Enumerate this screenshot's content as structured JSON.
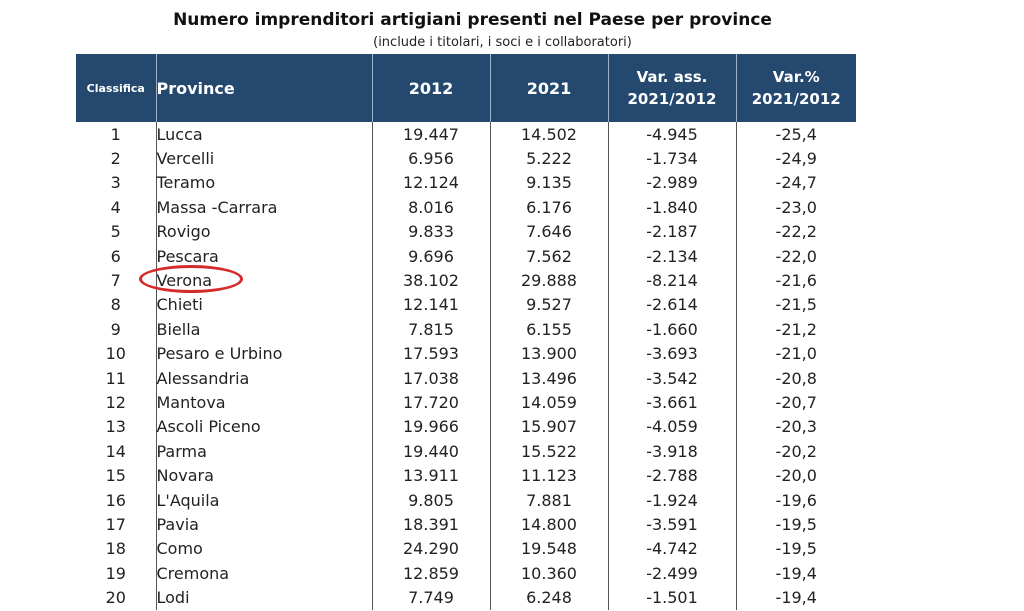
{
  "title": "Numero imprenditori artigiani presenti nel Paese per province",
  "subtitle": "(include i titolari, i soci e i collaboratori)",
  "columns": {
    "rank": "Classifica",
    "province": "Province",
    "y2012": "2012",
    "y2021": "2021",
    "var_abs_line1": "Var. ass.",
    "var_abs_line2": "2021/2012",
    "var_pct_line1": "Var.%",
    "var_pct_line2": "2021/2012"
  },
  "highlight": {
    "province": "Verona",
    "color": "#d42a2a"
  },
  "colors": {
    "header_bg": "#25486f",
    "header_text": "#ffffff"
  },
  "rows": [
    {
      "rank": "1",
      "province": "Lucca",
      "y2012": "19.447",
      "y2021": "14.502",
      "var_abs": "-4.945",
      "var_pct": "-25,4"
    },
    {
      "rank": "2",
      "province": "Vercelli",
      "y2012": "6.956",
      "y2021": "5.222",
      "var_abs": "-1.734",
      "var_pct": "-24,9"
    },
    {
      "rank": "3",
      "province": "Teramo",
      "y2012": "12.124",
      "y2021": "9.135",
      "var_abs": "-2.989",
      "var_pct": "-24,7"
    },
    {
      "rank": "4",
      "province": "Massa -Carrara",
      "y2012": "8.016",
      "y2021": "6.176",
      "var_abs": "-1.840",
      "var_pct": "-23,0"
    },
    {
      "rank": "5",
      "province": "Rovigo",
      "y2012": "9.833",
      "y2021": "7.646",
      "var_abs": "-2.187",
      "var_pct": "-22,2"
    },
    {
      "rank": "6",
      "province": "Pescara",
      "y2012": "9.696",
      "y2021": "7.562",
      "var_abs": "-2.134",
      "var_pct": "-22,0"
    },
    {
      "rank": "7",
      "province": "Verona",
      "y2012": "38.102",
      "y2021": "29.888",
      "var_abs": "-8.214",
      "var_pct": "-21,6"
    },
    {
      "rank": "8",
      "province": "Chieti",
      "y2012": "12.141",
      "y2021": "9.527",
      "var_abs": "-2.614",
      "var_pct": "-21,5"
    },
    {
      "rank": "9",
      "province": "Biella",
      "y2012": "7.815",
      "y2021": "6.155",
      "var_abs": "-1.660",
      "var_pct": "-21,2"
    },
    {
      "rank": "10",
      "province": "Pesaro e Urbino",
      "y2012": "17.593",
      "y2021": "13.900",
      "var_abs": "-3.693",
      "var_pct": "-21,0"
    },
    {
      "rank": "11",
      "province": "Alessandria",
      "y2012": "17.038",
      "y2021": "13.496",
      "var_abs": "-3.542",
      "var_pct": "-20,8"
    },
    {
      "rank": "12",
      "province": "Mantova",
      "y2012": "17.720",
      "y2021": "14.059",
      "var_abs": "-3.661",
      "var_pct": "-20,7"
    },
    {
      "rank": "13",
      "province": "Ascoli Piceno",
      "y2012": "19.966",
      "y2021": "15.907",
      "var_abs": "-4.059",
      "var_pct": "-20,3"
    },
    {
      "rank": "14",
      "province": "Parma",
      "y2012": "19.440",
      "y2021": "15.522",
      "var_abs": "-3.918",
      "var_pct": "-20,2"
    },
    {
      "rank": "15",
      "province": "Novara",
      "y2012": "13.911",
      "y2021": "11.123",
      "var_abs": "-2.788",
      "var_pct": "-20,0"
    },
    {
      "rank": "16",
      "province": "L'Aquila",
      "y2012": "9.805",
      "y2021": "7.881",
      "var_abs": "-1.924",
      "var_pct": "-19,6"
    },
    {
      "rank": "17",
      "province": "Pavia",
      "y2012": "18.391",
      "y2021": "14.800",
      "var_abs": "-3.591",
      "var_pct": "-19,5"
    },
    {
      "rank": "18",
      "province": "Como",
      "y2012": "24.290",
      "y2021": "19.548",
      "var_abs": "-4.742",
      "var_pct": "-19,5"
    },
    {
      "rank": "19",
      "province": "Cremona",
      "y2012": "12.859",
      "y2021": "10.360",
      "var_abs": "-2.499",
      "var_pct": "-19,4"
    },
    {
      "rank": "20",
      "province": "Lodi",
      "y2012": "7.749",
      "y2021": "6.248",
      "var_abs": "-1.501",
      "var_pct": "-19,4"
    }
  ]
}
